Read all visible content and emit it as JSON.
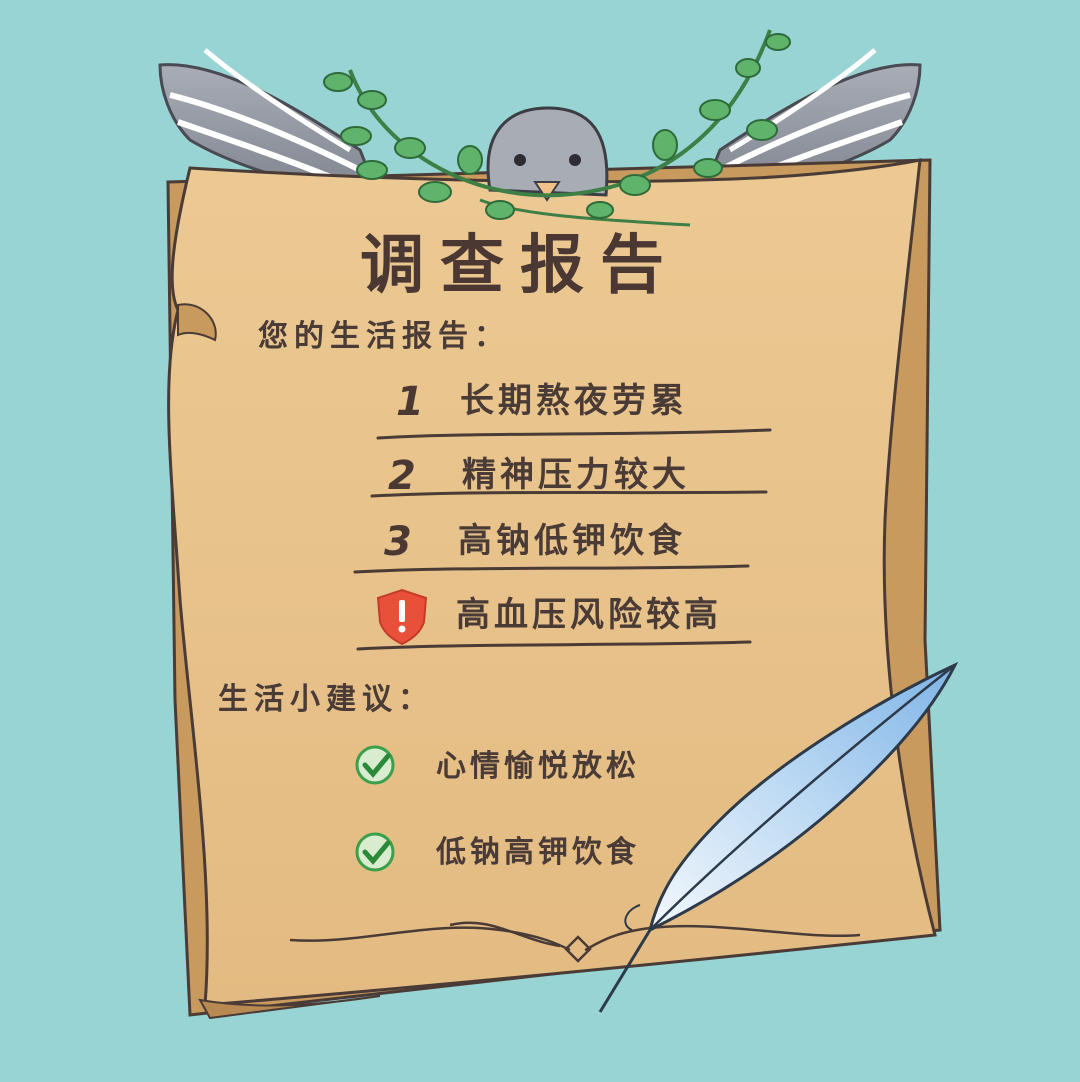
{
  "title": "调查报告",
  "report": {
    "heading": "您的生活报告：",
    "items": [
      {
        "number": "1",
        "text": "长期熬夜劳累"
      },
      {
        "number": "2",
        "text": "精神压力较大"
      },
      {
        "number": "3",
        "text": "高钠低钾饮食"
      }
    ],
    "warning": {
      "icon": "alert-shield-icon",
      "text": "高血压风险较高"
    }
  },
  "advice": {
    "heading": "生活小建议：",
    "items": [
      {
        "icon": "check-circle-icon",
        "text": "心情愉悦放松"
      },
      {
        "icon": "check-circle-icon",
        "text": "低钠高钾饮食"
      }
    ]
  },
  "colors": {
    "background": "#97d4d3",
    "parchment": "#e9c48d",
    "parchment_edge": "#b88a52",
    "ink": "#4a3b36",
    "leaf": "#5fb36a",
    "warning": "#e8503a",
    "check": "#3aa04a",
    "feather": "#8fc2ee"
  }
}
